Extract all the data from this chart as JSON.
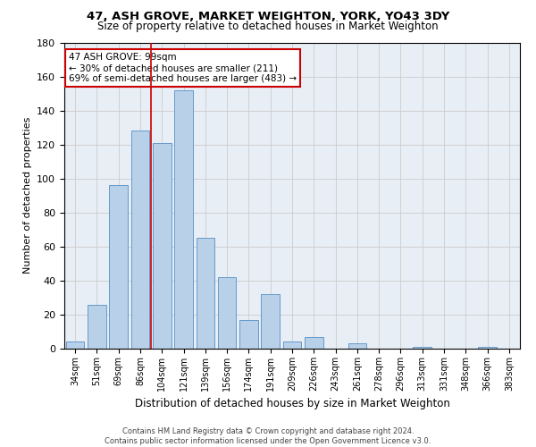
{
  "title1": "47, ASH GROVE, MARKET WEIGHTON, YORK, YO43 3DY",
  "title2": "Size of property relative to detached houses in Market Weighton",
  "xlabel": "Distribution of detached houses by size in Market Weighton",
  "ylabel": "Number of detached properties",
  "footer1": "Contains HM Land Registry data © Crown copyright and database right 2024.",
  "footer2": "Contains public sector information licensed under the Open Government Licence v3.0.",
  "categories": [
    "34sqm",
    "51sqm",
    "69sqm",
    "86sqm",
    "104sqm",
    "121sqm",
    "139sqm",
    "156sqm",
    "174sqm",
    "191sqm",
    "209sqm",
    "226sqm",
    "243sqm",
    "261sqm",
    "278sqm",
    "296sqm",
    "313sqm",
    "331sqm",
    "348sqm",
    "366sqm",
    "383sqm"
  ],
  "values": [
    4,
    26,
    96,
    128,
    121,
    152,
    65,
    42,
    17,
    32,
    4,
    7,
    0,
    3,
    0,
    0,
    1,
    0,
    0,
    1,
    0
  ],
  "bar_color": "#b8d0e8",
  "bar_edge_color": "#6699cc",
  "grid_color": "#cccccc",
  "vline_index": 3.5,
  "vline_color": "#cc0000",
  "annotation_text": "47 ASH GROVE: 99sqm\n← 30% of detached houses are smaller (211)\n69% of semi-detached houses are larger (483) →",
  "annotation_box_color": "#ffffff",
  "annotation_box_edge": "#cc0000",
  "bg_color": "#e8eef5",
  "ylim": [
    0,
    180
  ],
  "yticks": [
    0,
    20,
    40,
    60,
    80,
    100,
    120,
    140,
    160,
    180
  ]
}
